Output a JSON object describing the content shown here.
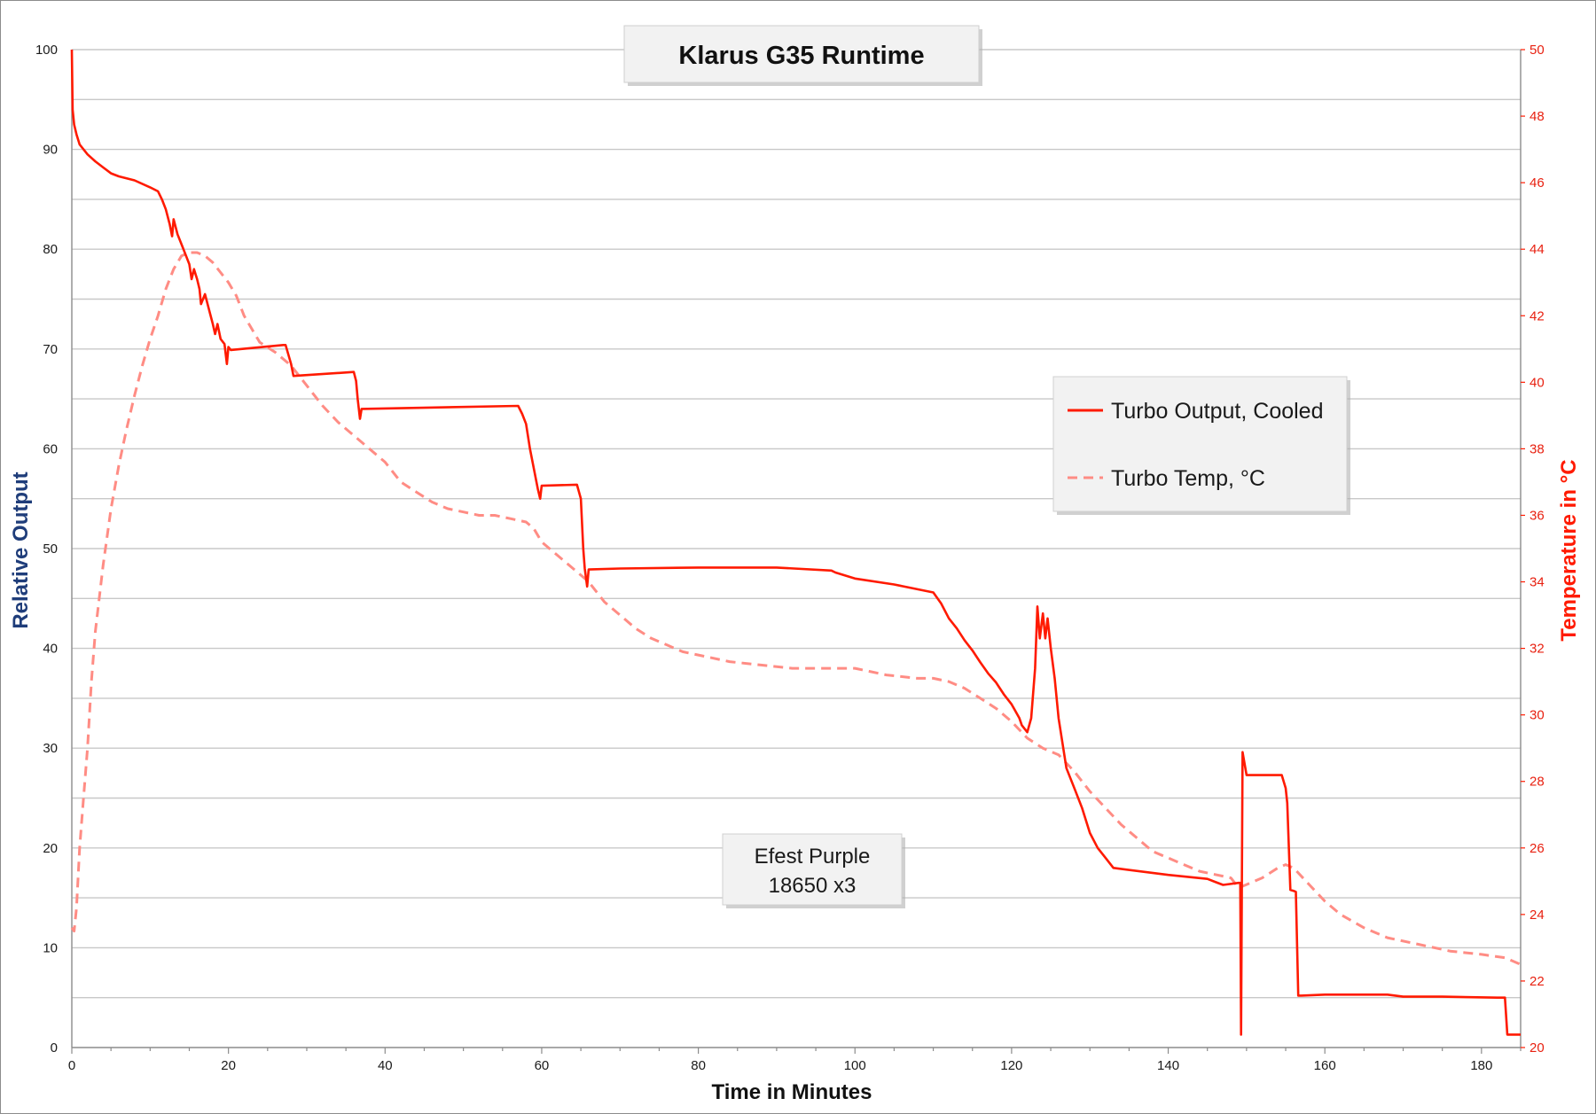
{
  "chart_data": {
    "type": "line",
    "title": "Klarus G35 Runtime",
    "xlabel": "Time in Minutes",
    "ylabel": "Relative Output",
    "y2label": "Temperature in °C",
    "xlim": [
      0,
      185
    ],
    "ylim": [
      0,
      100
    ],
    "y2lim": [
      20,
      50
    ],
    "xticks": [
      0,
      20,
      40,
      60,
      80,
      100,
      120,
      140,
      160,
      180
    ],
    "yticks": [
      0,
      10,
      20,
      30,
      40,
      50,
      60,
      70,
      80,
      90,
      100
    ],
    "y2ticks": [
      20,
      22,
      24,
      26,
      28,
      30,
      32,
      34,
      36,
      38,
      40,
      42,
      44,
      46,
      48,
      50
    ],
    "grid": "horizontal lines every 5 output units",
    "legend_position": "right",
    "annotation": [
      "Efest Purple",
      "18650 x3"
    ],
    "colors": {
      "output": "#ff1a00",
      "temp": "#ff8c84",
      "left_axis": "#1f3d7a",
      "right_axis": "#ff1a00"
    },
    "series": [
      {
        "name": "Turbo Output, Cooled",
        "axis": "left",
        "style": "solid",
        "x": [
          0,
          0.1,
          0.3,
          0.6,
          1,
          2,
          3,
          4,
          5,
          6,
          8,
          10,
          11,
          11.5,
          12,
          12.5,
          12.8,
          13,
          13.5,
          14,
          14.5,
          15,
          15.3,
          15.6,
          16,
          16.3,
          16.5,
          17,
          17.5,
          18,
          18.3,
          18.6,
          19,
          19.5,
          19.8,
          20,
          20.3,
          27,
          27.3,
          28,
          28.3,
          36,
          36.3,
          36.5,
          36.8,
          37,
          57,
          57.5,
          58,
          58.5,
          59,
          59.5,
          59.8,
          60,
          64.5,
          65,
          65.3,
          65.5,
          65.8,
          66,
          70,
          80,
          90,
          97,
          97.5,
          100,
          105,
          110,
          111,
          112,
          113,
          114,
          115,
          116,
          117,
          118,
          119,
          120,
          121,
          121.3,
          122,
          122.5,
          123,
          123.3,
          123.6,
          124,
          124.3,
          124.6,
          125,
          125.5,
          126,
          127,
          128,
          129,
          130,
          131,
          132,
          133,
          140,
          145,
          146,
          147,
          149,
          149.2,
          149.3,
          149.5,
          150,
          154.5,
          155,
          155.2,
          155.6,
          156,
          156.3,
          156.6,
          157,
          160,
          168,
          170,
          175,
          182,
          183,
          183.3,
          185
        ],
        "y": [
          100,
          94,
          92.5,
          91.5,
          90.5,
          89.5,
          88.8,
          88.2,
          87.6,
          87.3,
          86.9,
          86.2,
          85.8,
          85,
          84,
          82.5,
          81.3,
          83,
          81.5,
          80.5,
          79.5,
          78.5,
          77,
          78,
          77,
          76,
          74.5,
          75.5,
          74,
          72.5,
          71.5,
          72.5,
          71,
          70.5,
          68.5,
          70.2,
          69.9,
          70.4,
          70.4,
          68.5,
          67.3,
          67.7,
          66.8,
          65,
          63,
          64,
          64.3,
          63.5,
          62.5,
          60,
          58,
          56,
          55,
          56.3,
          56.4,
          55,
          50,
          48,
          46.2,
          47.9,
          48,
          48.1,
          48.1,
          47.8,
          47.6,
          47,
          46.4,
          45.6,
          44.5,
          43,
          42,
          40.8,
          39.8,
          38.6,
          37.5,
          36.6,
          35.4,
          34.4,
          33,
          32.3,
          31.6,
          33,
          38,
          44.2,
          41,
          43.5,
          41,
          43,
          40,
          37,
          33,
          28,
          26,
          24,
          21.5,
          20,
          19,
          18,
          17.3,
          16.9,
          16.6,
          16.3,
          16.5,
          16.5,
          1.3,
          29.6,
          27.3,
          27.3,
          26,
          24.5,
          15.8,
          15.7,
          15.6,
          5.2,
          5.2,
          5.3,
          5.3,
          5.1,
          5.1,
          5,
          5,
          1.3,
          1.3
        ]
      },
      {
        "name": "Turbo Temp, °C",
        "axis": "right",
        "style": "dashed",
        "x": [
          0,
          0.3,
          0.6,
          1,
          1.5,
          2,
          2.5,
          3,
          4,
          5,
          6,
          7,
          8,
          9,
          10,
          11,
          12,
          13,
          14,
          15,
          16,
          17,
          18,
          19,
          20,
          21,
          22,
          23,
          24,
          26,
          28,
          30,
          32,
          34,
          36,
          38,
          40,
          42,
          44,
          46,
          48,
          50,
          52,
          54,
          56,
          58,
          59,
          60,
          62,
          64,
          66,
          68,
          70,
          72,
          74,
          76,
          78,
          80,
          84,
          88,
          92,
          96,
          100,
          104,
          108,
          110,
          112,
          114,
          116,
          118,
          120,
          122,
          124,
          126,
          128,
          130,
          132,
          134,
          136,
          138,
          140,
          142,
          144,
          146,
          148,
          149,
          150,
          152,
          154,
          155,
          156,
          158,
          160,
          162,
          165,
          168,
          172,
          176,
          180,
          183,
          185
        ],
        "y": [
          23.6,
          23.5,
          24.2,
          26,
          27.5,
          29,
          31,
          32.5,
          34.5,
          36.2,
          37.5,
          38.6,
          39.6,
          40.5,
          41.3,
          42,
          42.8,
          43.4,
          43.8,
          43.9,
          43.9,
          43.8,
          43.6,
          43.3,
          43,
          42.6,
          42,
          41.6,
          41.2,
          40.9,
          40.5,
          39.9,
          39.3,
          38.8,
          38.4,
          38,
          37.6,
          37,
          36.7,
          36.4,
          36.2,
          36.1,
          36,
          36,
          35.9,
          35.8,
          35.6,
          35.2,
          34.8,
          34.4,
          34,
          33.4,
          33,
          32.6,
          32.3,
          32.1,
          31.9,
          31.8,
          31.6,
          31.5,
          31.4,
          31.4,
          31.4,
          31.2,
          31.1,
          31.1,
          31,
          30.8,
          30.5,
          30.2,
          29.8,
          29.3,
          29,
          28.8,
          28.3,
          27.7,
          27.2,
          26.7,
          26.3,
          25.9,
          25.7,
          25.5,
          25.3,
          25.2,
          25.1,
          24.8,
          24.9,
          25.1,
          25.4,
          25.5,
          25.4,
          24.9,
          24.4,
          24,
          23.6,
          23.3,
          23.1,
          22.9,
          22.8,
          22.7,
          22.5
        ]
      }
    ]
  }
}
